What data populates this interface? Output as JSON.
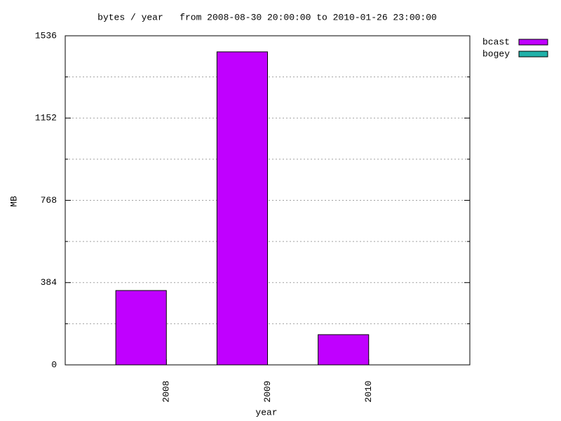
{
  "chart_data": {
    "type": "bar",
    "title": "bytes / year   from 2008-08-30 20:00:00 to 2010-01-26 23:00:00",
    "x_label": "year",
    "y_label": "MB",
    "categories": [
      "2008",
      "2009",
      "2010"
    ],
    "series": [
      {
        "name": "bcast",
        "color": "#c000ff",
        "values": [
          347,
          1461,
          141
        ]
      },
      {
        "name": "bogey",
        "color": "#20b0a8",
        "values": [
          0,
          0,
          0
        ]
      }
    ],
    "ylim": [
      0,
      1536
    ],
    "yticks": [
      0,
      384,
      768,
      1152,
      1536
    ],
    "minor_yticks": [
      192,
      576,
      960,
      1344
    ],
    "grid": true,
    "legend": "outside-top-right"
  }
}
